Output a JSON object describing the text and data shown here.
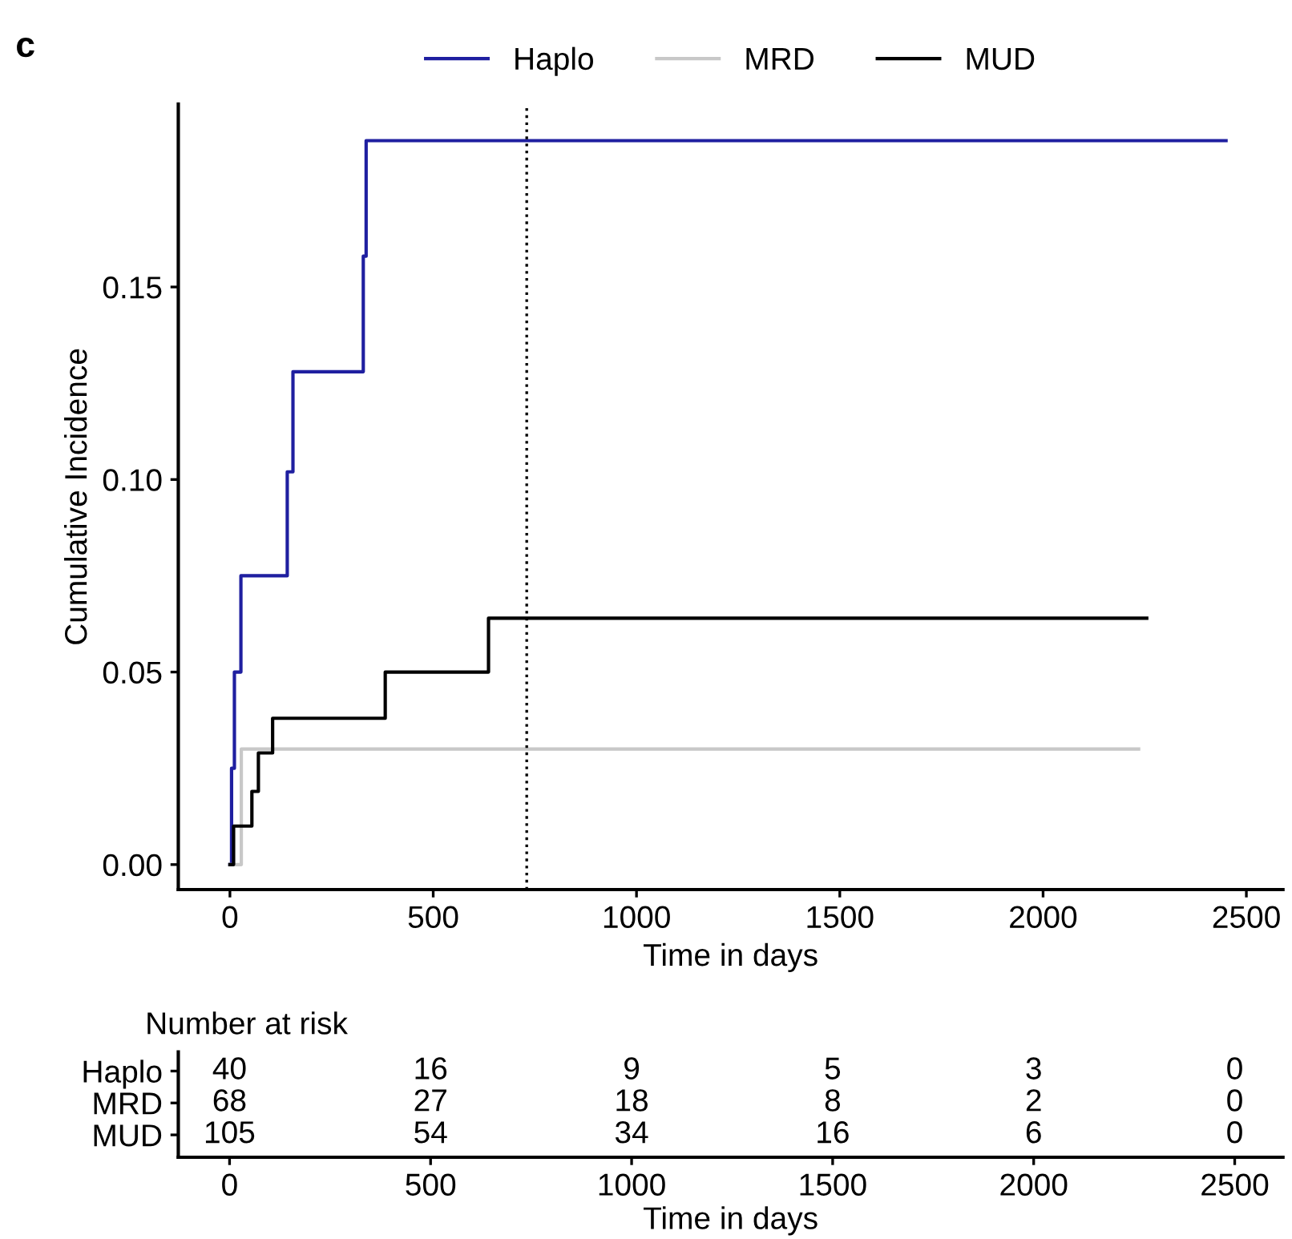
{
  "chart_data": [
    {
      "type": "step",
      "xlabel": "Time in days",
      "ylabel": "Cumulative Incidence",
      "annotations": [
        "c"
      ],
      "series": [
        {
          "name": "Haplo",
          "color": "#1f1fa0",
          "x": [
            0,
            4,
            11,
            27,
            141,
            155,
            328,
            335,
            2450
          ],
          "values": [
            0,
            0.025,
            0.05,
            0.075,
            0.102,
            0.128,
            0.158,
            0.188,
            0.188
          ]
        },
        {
          "name": "MRD",
          "color": "#c8c8c8",
          "x": [
            0,
            28,
            2235
          ],
          "values": [
            0,
            0.03,
            0.03
          ]
        },
        {
          "name": "MUD",
          "color": "#000000",
          "x": [
            0,
            9,
            54,
            70,
            105,
            382,
            636,
            2255
          ],
          "values": [
            0,
            0.01,
            0.019,
            0.029,
            0.038,
            0.05,
            0.064,
            0.064
          ]
        }
      ],
      "xlim": [
        -127,
        2590
      ],
      "xticks": [
        0,
        500,
        1000,
        1500,
        2000,
        2500
      ],
      "ylim": [
        -0.0065,
        0.1975
      ],
      "yticks": [
        {
          "value": 0,
          "label": "0.00"
        },
        {
          "value": 0.05,
          "label": "0.05"
        },
        {
          "value": 0.1,
          "label": "0.10"
        },
        {
          "value": 0.15,
          "label": "0.15"
        }
      ],
      "ref_lines": [
        {
          "axis": "x",
          "value": 730,
          "line_style": "dotted",
          "color": "#000000"
        }
      ],
      "legend": "top",
      "grid": false
    },
    {
      "type": "heatmap",
      "title": "Number at risk",
      "xlabel": "Time in days",
      "categories": [
        "0",
        "500",
        "1000",
        "1500",
        "2000",
        "2500"
      ],
      "y_categories": [
        "Haplo",
        "MRD",
        "MUD"
      ],
      "cells": [
        [
          40,
          16,
          9,
          5,
          3,
          0
        ],
        [
          68,
          27,
          18,
          8,
          2,
          0
        ],
        [
          105,
          54,
          34,
          16,
          6,
          0
        ]
      ],
      "data_labels": true
    }
  ]
}
